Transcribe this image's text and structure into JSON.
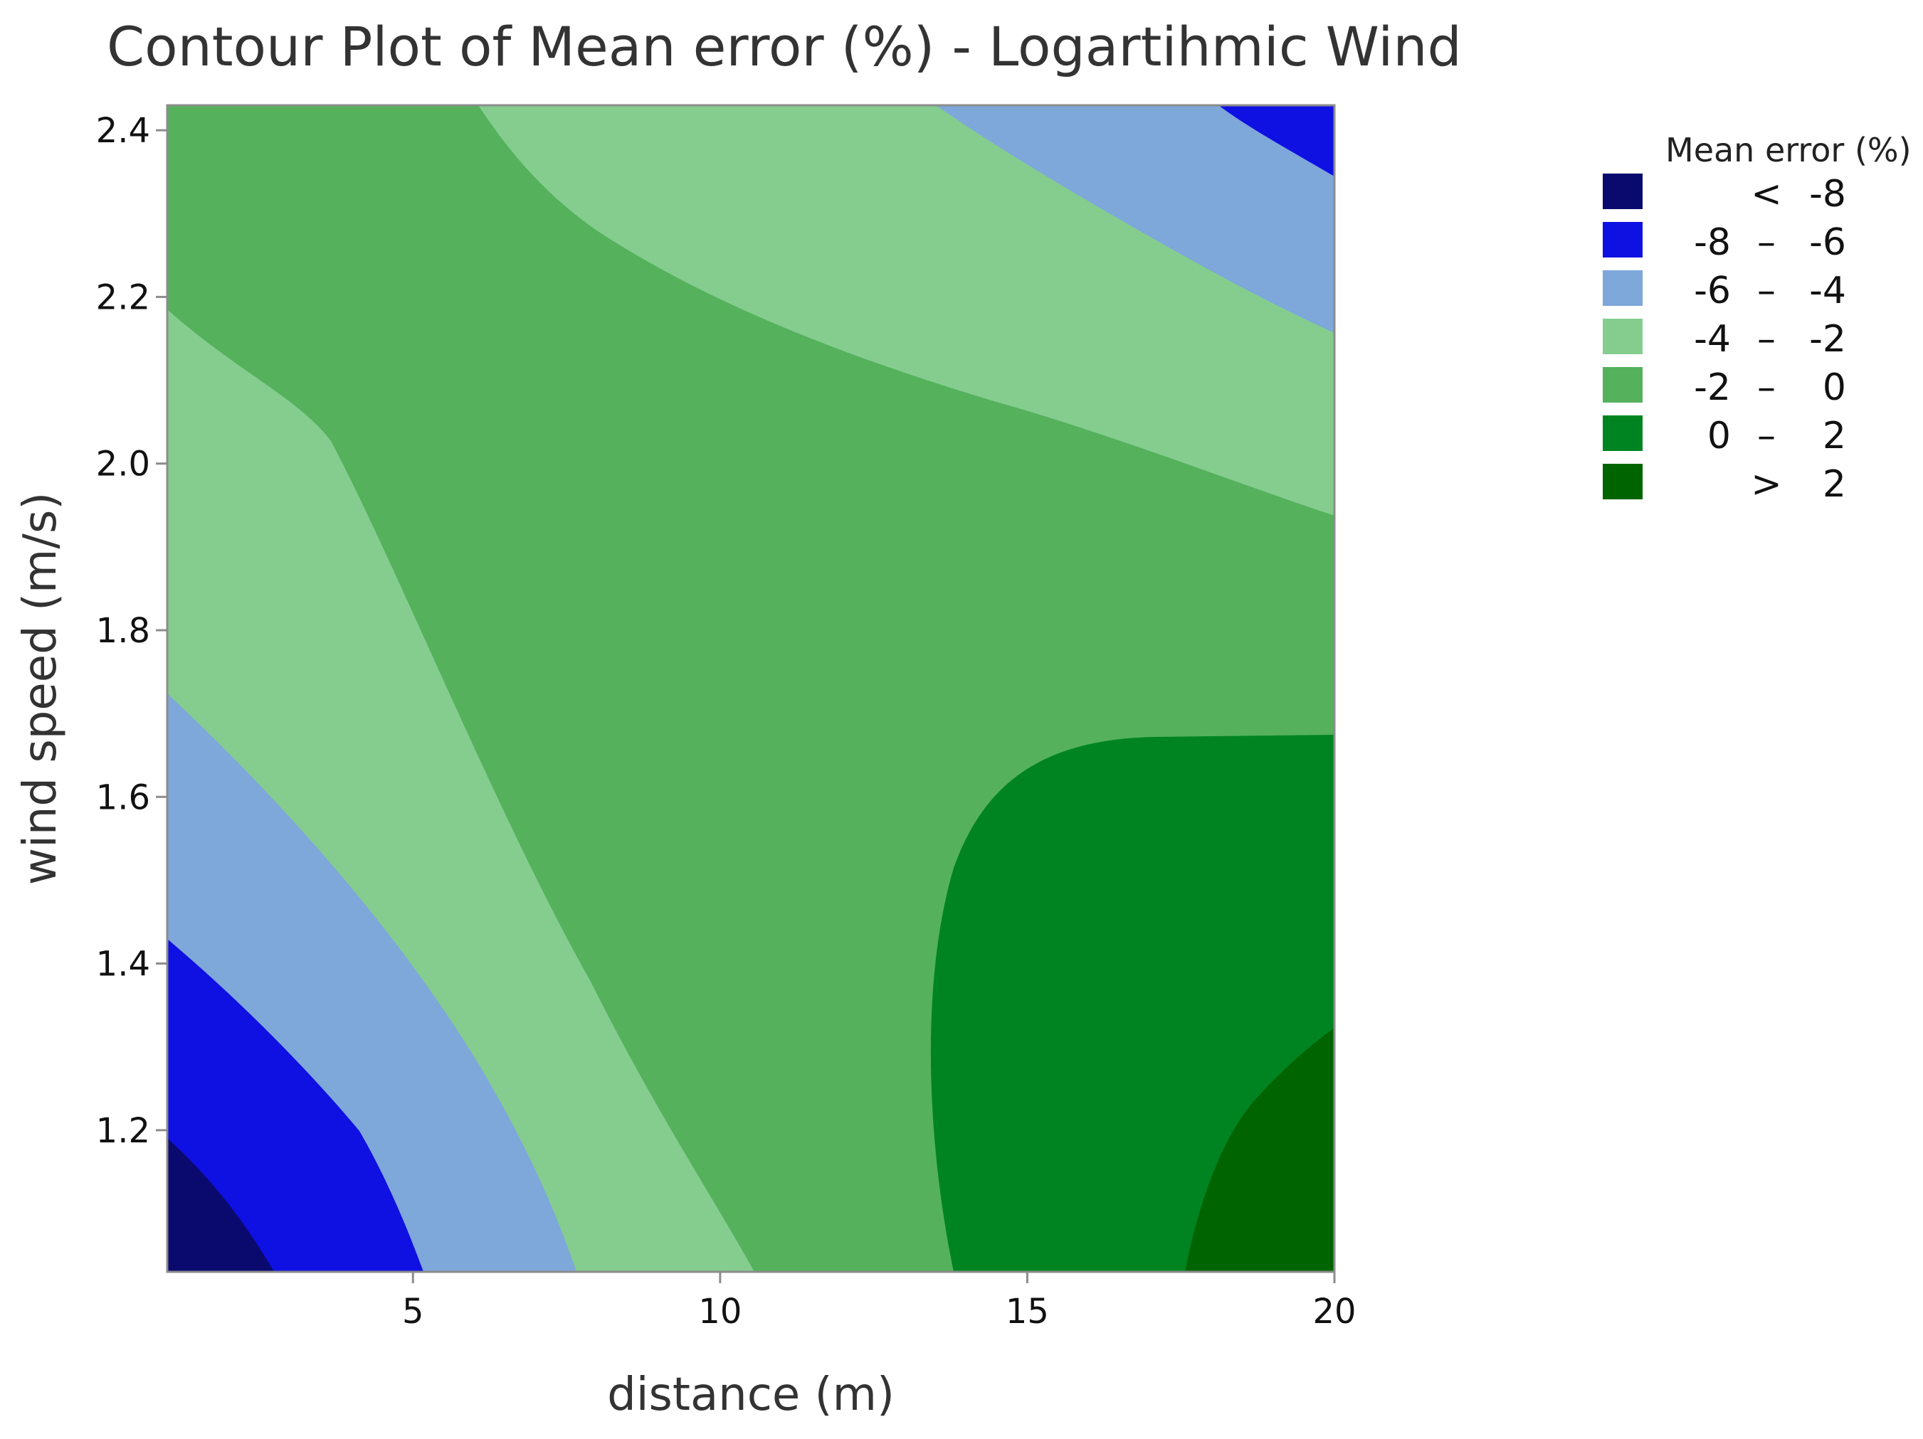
{
  "chart_data": {
    "type": "contour",
    "title": "Contour Plot of Mean error (%) - Logartihmic Wind",
    "xlabel": "distance (m)",
    "ylabel": "wind speed (m/s)",
    "xlim": [
      1,
      20
    ],
    "ylim": [
      1.03,
      2.43
    ],
    "x_ticks": [
      5,
      10,
      15,
      20
    ],
    "y_ticks": [
      1.2,
      1.4,
      1.6,
      1.8,
      2.0,
      2.2,
      2.4
    ],
    "x_tick_labels": [
      "5",
      "10",
      "15",
      "20"
    ],
    "y_tick_labels": [
      "1.2",
      "1.4",
      "1.6",
      "1.8",
      "2.0",
      "2.2",
      "2.4"
    ],
    "grid": false,
    "legend": {
      "title": "Mean error (%)",
      "placement": "right",
      "entries": [
        {
          "low": "",
          "sep": "<",
          "high": "-8",
          "color": "#0a0a6e"
        },
        {
          "low": "-8",
          "sep": "–",
          "high": "-6",
          "color": "#0f10e2"
        },
        {
          "low": "-6",
          "sep": "–",
          "high": "-4",
          "color": "#7ea7da"
        },
        {
          "low": "-4",
          "sep": "–",
          "high": "-2",
          "color": "#84cd8f"
        },
        {
          "low": "-2",
          "sep": "–",
          "high": "0",
          "color": "#55b15c"
        },
        {
          "low": "0",
          "sep": "–",
          "high": "2",
          "color": "#008422"
        },
        {
          "low": "",
          "sep": ">",
          "high": "2",
          "color": "#006400"
        }
      ]
    },
    "contour_boundaries": [
      {
        "level": -6,
        "points": [
          [
            1,
            1.18
          ],
          [
            2.8,
            1.03
          ]
        ]
      },
      {
        "level": -4,
        "points": [
          [
            1,
            1.42
          ],
          [
            3.5,
            1.2
          ],
          [
            5.2,
            1.03
          ]
        ]
      },
      {
        "level": -2,
        "points": [
          [
            1,
            1.72
          ],
          [
            4,
            1.42
          ],
          [
            6.5,
            1.18
          ],
          [
            7.8,
            1.03
          ]
        ]
      },
      {
        "level": 0,
        "points": [
          [
            1,
            2.18
          ],
          [
            6.5,
            1.74
          ],
          [
            9.5,
            1.26
          ],
          [
            10.6,
            1.03
          ]
        ]
      },
      {
        "level": -2,
        "points": [
          [
            6,
            2.43
          ],
          [
            12,
            2.15
          ],
          [
            18,
            1.98
          ],
          [
            20,
            1.93
          ]
        ]
      },
      {
        "level": -4,
        "points": [
          [
            13.5,
            2.43
          ],
          [
            18.5,
            2.26
          ],
          [
            20,
            2.15
          ]
        ]
      },
      {
        "level": -6,
        "points": [
          [
            18.2,
            2.43
          ],
          [
            20,
            2.34
          ]
        ]
      },
      {
        "level": 0,
        "points": [
          [
            13.8,
            1.03
          ],
          [
            13.5,
            1.2
          ],
          [
            14.5,
            1.5
          ],
          [
            17,
            1.67
          ],
          [
            20,
            1.67
          ]
        ]
      },
      {
        "level": 2,
        "points": [
          [
            17.6,
            1.03
          ],
          [
            18.2,
            1.2
          ],
          [
            20,
            1.32
          ]
        ]
      }
    ]
  }
}
